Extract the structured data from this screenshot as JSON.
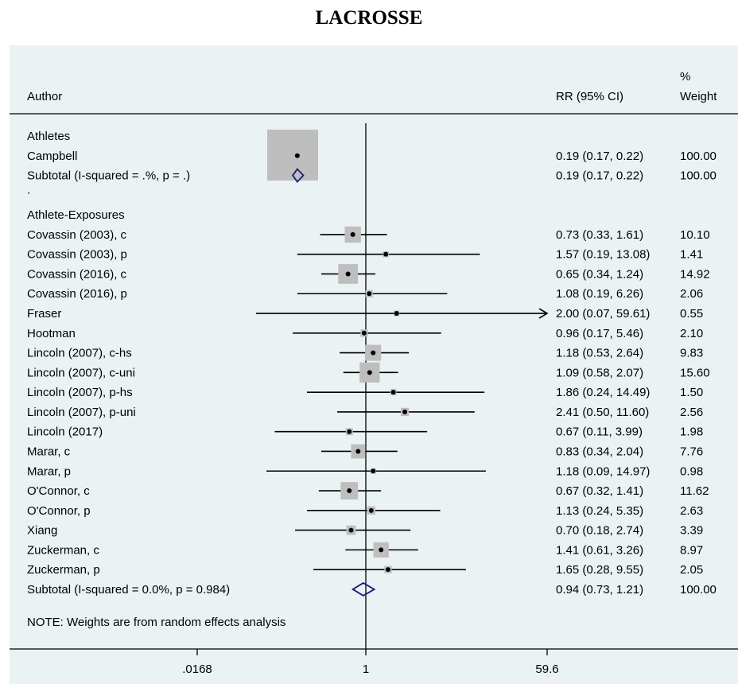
{
  "title": "LACROSSE",
  "chart_data": {
    "type": "forest",
    "columns": {
      "author": "Author",
      "rr": "RR (95% CI)",
      "weight_line1": "%",
      "weight_line2": "Weight"
    },
    "x_axis": {
      "scale": "log",
      "range": [
        0.0168,
        59.6
      ],
      "ticks": [
        ".0168",
        "1",
        "59.6"
      ],
      "reference_line": 1
    },
    "groups": [
      {
        "label": "Athletes",
        "studies": [
          {
            "author": "Campbell",
            "rr": 0.19,
            "lo": 0.17,
            "hi": 0.22,
            "weight": 100.0,
            "ci_text": "0.19 (0.17, 0.22)",
            "weight_text": "100.00"
          }
        ],
        "subtotal": {
          "label": "Subtotal  (I-squared = .%, p = .)",
          "rr": 0.19,
          "lo": 0.17,
          "hi": 0.22,
          "ci_text": "0.19 (0.17, 0.22)",
          "weight_text": "100.00"
        }
      },
      {
        "label": "Athlete-Exposures",
        "studies": [
          {
            "author": "Covassin (2003), c",
            "rr": 0.73,
            "lo": 0.33,
            "hi": 1.61,
            "weight": 10.1,
            "ci_text": "0.73 (0.33, 1.61)",
            "weight_text": "10.10"
          },
          {
            "author": "Covassin (2003), p",
            "rr": 1.57,
            "lo": 0.19,
            "hi": 13.08,
            "weight": 1.41,
            "ci_text": "1.57 (0.19, 13.08)",
            "weight_text": "1.41"
          },
          {
            "author": "Covassin (2016), c",
            "rr": 0.65,
            "lo": 0.34,
            "hi": 1.24,
            "weight": 14.92,
            "ci_text": "0.65 (0.34, 1.24)",
            "weight_text": "14.92"
          },
          {
            "author": "Covassin (2016), p",
            "rr": 1.08,
            "lo": 0.19,
            "hi": 6.26,
            "weight": 2.06,
            "ci_text": "1.08 (0.19, 6.26)",
            "weight_text": "2.06"
          },
          {
            "author": "Fraser",
            "rr": 2.0,
            "lo": 0.07,
            "hi": 59.61,
            "weight": 0.55,
            "ci_text": "2.00 (0.07, 59.61)",
            "weight_text": "0.55",
            "arrow": true
          },
          {
            "author": "Hootman",
            "rr": 0.96,
            "lo": 0.17,
            "hi": 5.46,
            "weight": 2.1,
            "ci_text": "0.96 (0.17, 5.46)",
            "weight_text": "2.10"
          },
          {
            "author": "Lincoln (2007), c-hs",
            "rr": 1.18,
            "lo": 0.53,
            "hi": 2.64,
            "weight": 9.83,
            "ci_text": "1.18 (0.53, 2.64)",
            "weight_text": "9.83"
          },
          {
            "author": "Lincoln (2007), c-uni",
            "rr": 1.09,
            "lo": 0.58,
            "hi": 2.07,
            "weight": 15.6,
            "ci_text": "1.09 (0.58, 2.07)",
            "weight_text": "15.60"
          },
          {
            "author": "Lincoln (2007), p-hs",
            "rr": 1.86,
            "lo": 0.24,
            "hi": 14.49,
            "weight": 1.5,
            "ci_text": "1.86 (0.24, 14.49)",
            "weight_text": "1.50"
          },
          {
            "author": "Lincoln (2007), p-uni",
            "rr": 2.41,
            "lo": 0.5,
            "hi": 11.6,
            "weight": 2.56,
            "ci_text": "2.41 (0.50, 11.60)",
            "weight_text": "2.56"
          },
          {
            "author": "Lincoln (2017)",
            "rr": 0.67,
            "lo": 0.11,
            "hi": 3.99,
            "weight": 1.98,
            "ci_text": "0.67 (0.11, 3.99)",
            "weight_text": "1.98"
          },
          {
            "author": "Marar, c",
            "rr": 0.83,
            "lo": 0.34,
            "hi": 2.04,
            "weight": 7.76,
            "ci_text": "0.83 (0.34, 2.04)",
            "weight_text": "7.76"
          },
          {
            "author": "Marar, p",
            "rr": 1.18,
            "lo": 0.09,
            "hi": 14.97,
            "weight": 0.98,
            "ci_text": "1.18 (0.09, 14.97)",
            "weight_text": "0.98"
          },
          {
            "author": "O'Connor, c",
            "rr": 0.67,
            "lo": 0.32,
            "hi": 1.41,
            "weight": 11.62,
            "ci_text": "0.67 (0.32, 1.41)",
            "weight_text": "11.62"
          },
          {
            "author": "O'Connor, p",
            "rr": 1.13,
            "lo": 0.24,
            "hi": 5.35,
            "weight": 2.63,
            "ci_text": "1.13 (0.24, 5.35)",
            "weight_text": "2.63"
          },
          {
            "author": "Xiang",
            "rr": 0.7,
            "lo": 0.18,
            "hi": 2.74,
            "weight": 3.39,
            "ci_text": "0.70 (0.18, 2.74)",
            "weight_text": "3.39"
          },
          {
            "author": "Zuckerman, c",
            "rr": 1.41,
            "lo": 0.61,
            "hi": 3.26,
            "weight": 8.97,
            "ci_text": "1.41 (0.61, 3.26)",
            "weight_text": "8.97"
          },
          {
            "author": "Zuckerman, p",
            "rr": 1.65,
            "lo": 0.28,
            "hi": 9.55,
            "weight": 2.05,
            "ci_text": "1.65 (0.28, 9.55)",
            "weight_text": "2.05"
          }
        ],
        "subtotal": {
          "label": "Subtotal  (I-squared = 0.0%, p = 0.984)",
          "rr": 0.94,
          "lo": 0.73,
          "hi": 1.21,
          "ci_text": "0.94 (0.73, 1.21)",
          "weight_text": "100.00"
        }
      }
    ],
    "separator": ".",
    "note": "NOTE: Weights are from random effects analysis",
    "colors": {
      "box": "#bebebe",
      "point": "#000000",
      "diamond": "#1a1a7a",
      "line": "#000000",
      "background": "#eaf2f3"
    }
  }
}
